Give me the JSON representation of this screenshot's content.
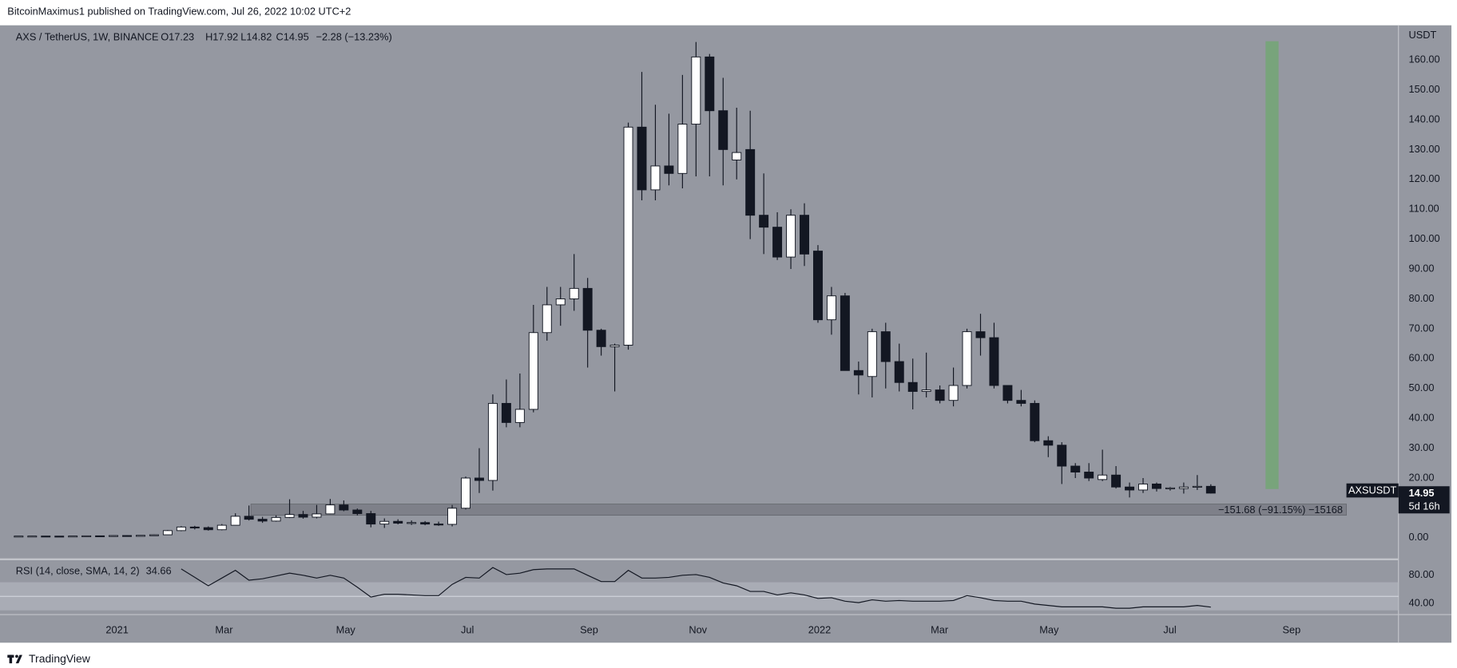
{
  "header": {
    "published": "BitcoinMaximus1 published on TradingView.com, Jul 26, 2022 10:02 UTC+2"
  },
  "footer": {
    "brand": "TradingView"
  },
  "chart_data": [
    {
      "type": "candlestick",
      "title": "AXS / TetherUS, 1W, BINANCE",
      "ohlc_legend": [
        "O17.23",
        "H17.92",
        "L14.82",
        "C14.95",
        "−2.28 (−13.23%)"
      ],
      "y_unit": "USDT",
      "up_color": "#ffffff",
      "down_color": "#131722",
      "x": [
        0,
        1,
        2,
        3,
        4,
        5,
        6,
        7,
        8,
        9,
        10,
        11,
        12,
        13,
        14,
        15,
        16,
        17,
        18,
        19,
        20,
        21,
        22,
        23,
        24,
        25,
        26,
        27,
        28,
        29,
        30,
        31,
        32,
        33,
        34,
        35,
        36,
        37,
        38,
        39,
        40,
        41,
        42,
        43,
        44,
        45,
        46,
        47,
        48,
        49,
        50,
        51,
        52,
        53,
        54,
        55,
        56,
        57,
        58,
        59,
        60,
        61,
        62,
        63,
        64,
        65,
        66,
        67,
        68,
        69,
        70,
        71,
        72,
        73,
        74,
        75,
        76,
        77,
        78,
        79,
        80,
        81,
        82,
        83,
        84,
        85,
        86,
        87,
        88
      ],
      "open": [
        0.55,
        0.57,
        0.58,
        0.56,
        0.54,
        0.59,
        0.65,
        0.62,
        0.75,
        0.65,
        0.82,
        1.0,
        2.4,
        3.6,
        3.4,
        2.7,
        4.2,
        7.2,
        6.2,
        5.6,
        6.8,
        7.8,
        6.9,
        8.0,
        11.0,
        9.3,
        8.1,
        4.6,
        5.5,
        4.9,
        5.1,
        4.6,
        4.5,
        9.9,
        20,
        19.2,
        45,
        38.6,
        43,
        68.7,
        78,
        80,
        83.5,
        69.5,
        64,
        64.5,
        137.5,
        116.5,
        124.5,
        122,
        138.5,
        161,
        143,
        126.5,
        130,
        108,
        104,
        94,
        108,
        96,
        73,
        81,
        56,
        54,
        69,
        59,
        52,
        49,
        49.5,
        46,
        51,
        69,
        67,
        51,
        46,
        45,
        32.5,
        31,
        24,
        22,
        19.5,
        21,
        17,
        16,
        18,
        16.5,
        16.5,
        17,
        17.23
      ],
      "high": [
        0.62,
        0.65,
        0.63,
        0.6,
        0.62,
        0.7,
        0.75,
        0.8,
        0.85,
        0.9,
        1.1,
        2.6,
        3.9,
        4.0,
        3.8,
        4.6,
        8.2,
        10.8,
        7.0,
        7.5,
        12.9,
        9.0,
        11.0,
        13.0,
        12.5,
        9.8,
        9.0,
        6.5,
        6.2,
        5.8,
        5.6,
        5.4,
        11.0,
        20.5,
        30,
        48,
        53,
        55,
        78,
        84,
        84,
        95,
        87,
        70,
        65,
        139,
        156,
        145,
        142,
        155,
        166,
        162,
        154,
        144,
        143,
        122,
        109,
        110,
        112,
        98,
        84,
        82,
        59,
        70,
        72,
        65,
        60,
        62,
        51,
        57,
        70,
        75,
        72,
        51,
        49.5,
        46,
        34,
        32,
        25,
        25,
        29.5,
        24,
        18.5,
        20,
        18.5,
        17,
        18.5,
        21,
        17.92
      ],
      "low": [
        0.5,
        0.52,
        0.53,
        0.5,
        0.5,
        0.55,
        0.58,
        0.6,
        0.6,
        0.62,
        0.75,
        0.95,
        2.2,
        2.8,
        2.4,
        2.5,
        4.1,
        5.8,
        5.0,
        5.4,
        6.6,
        6.4,
        6.5,
        7.9,
        8.9,
        7.5,
        3.5,
        3.3,
        4.5,
        4.3,
        4.2,
        4.0,
        3.8,
        9.5,
        15,
        15.8,
        37,
        37,
        42,
        66,
        71,
        76,
        57,
        61,
        49,
        63,
        113,
        113,
        118,
        117,
        121,
        121,
        118,
        120,
        100,
        95,
        93,
        90,
        91,
        72,
        68,
        56,
        48,
        47,
        50,
        49,
        43,
        47,
        45,
        44,
        50,
        61,
        50,
        45,
        44,
        32,
        27,
        18,
        20,
        19,
        19,
        16.5,
        13.5,
        15,
        15.5,
        15.8,
        14.8,
        16,
        14.82
      ],
      "close": [
        0.57,
        0.58,
        0.56,
        0.54,
        0.59,
        0.65,
        0.62,
        0.75,
        0.65,
        0.82,
        1.0,
        2.4,
        3.6,
        3.4,
        2.7,
        4.2,
        7.2,
        6.2,
        5.6,
        6.8,
        7.8,
        6.9,
        8.0,
        11.0,
        9.3,
        8.1,
        4.6,
        5.5,
        4.9,
        5.1,
        4.6,
        4.5,
        9.9,
        20,
        19.2,
        45,
        38.6,
        43,
        68.7,
        78,
        80,
        83.5,
        69.5,
        64,
        64.5,
        137.5,
        116.5,
        124.5,
        122,
        138.5,
        161,
        143,
        130,
        129,
        108,
        104,
        94,
        108,
        95,
        73,
        81,
        56,
        54.5,
        69,
        59,
        52,
        49,
        49.5,
        46,
        51,
        69,
        67,
        51,
        46,
        45,
        32.5,
        31,
        24,
        22,
        20,
        21,
        17,
        16,
        18,
        16.5,
        16.7,
        17,
        17.23,
        14.95
      ],
      "xlim": [
        -0.69,
        101.85
      ],
      "xticks": [
        {
          "value": 7.27,
          "label": "2021"
        },
        {
          "value": 15.16,
          "label": "Mar"
        },
        {
          "value": 24.14,
          "label": "May"
        },
        {
          "value": 33.13,
          "label": "Jul"
        },
        {
          "value": 42.11,
          "label": "Sep"
        },
        {
          "value": 50.14,
          "label": "Nov"
        },
        {
          "value": 59.12,
          "label": "2022"
        },
        {
          "value": 67.97,
          "label": "Mar"
        },
        {
          "value": 76.06,
          "label": "May"
        },
        {
          "value": 84.98,
          "label": "Jul"
        },
        {
          "value": 93.96,
          "label": "Sep"
        }
      ],
      "ylim": [
        -6.9,
        171.6
      ],
      "yticks": [
        {
          "value": 0,
          "label": "0.00"
        },
        {
          "value": 20,
          "label": "20.00"
        },
        {
          "value": 30,
          "label": "30.00"
        },
        {
          "value": 40,
          "label": "40.00"
        },
        {
          "value": 50,
          "label": "50.00"
        },
        {
          "value": 60,
          "label": "60.00"
        },
        {
          "value": 70,
          "label": "70.00"
        },
        {
          "value": 80,
          "label": "80.00"
        },
        {
          "value": 90,
          "label": "90.00"
        },
        {
          "value": 100,
          "label": "100.00"
        },
        {
          "value": 110,
          "label": "110.00"
        },
        {
          "value": 120,
          "label": "120.00"
        },
        {
          "value": 130,
          "label": "130.00"
        },
        {
          "value": 140,
          "label": "140.00"
        },
        {
          "value": 150,
          "label": "150.00"
        },
        {
          "value": 160,
          "label": "160.00"
        }
      ],
      "grid": false,
      "last_price": {
        "symbol": "AXSUSDT",
        "price": "14.95",
        "countdown": "5d 16h"
      },
      "measure_label": "−151.68 (−91.15%) −15168"
    },
    {
      "type": "line",
      "title": "RSI (14, close, SMA, 14, 2)",
      "value_label": "34.66",
      "color": "#131722",
      "values": [
        null,
        null,
        null,
        null,
        null,
        null,
        null,
        null,
        null,
        null,
        null,
        null,
        89,
        77,
        65,
        76,
        87,
        73,
        75,
        79,
        83,
        80,
        76,
        80,
        76,
        63,
        49,
        53,
        53,
        52,
        51,
        51,
        67,
        77,
        76,
        91,
        81,
        83,
        88,
        89,
        89,
        89,
        80,
        71,
        71,
        87,
        76,
        76,
        77,
        80,
        81,
        77,
        69,
        65,
        57,
        57,
        52,
        55,
        52,
        47,
        48,
        43,
        41,
        45,
        43,
        44,
        43,
        43,
        43,
        44,
        51,
        48,
        44,
        43,
        43,
        39,
        37,
        35,
        35,
        35,
        35,
        33,
        33,
        35,
        35,
        35,
        35,
        37,
        34.66
      ],
      "ylim": [
        25.3,
        102.7
      ],
      "yticks": [
        {
          "value": 40,
          "label": "40.00"
        },
        {
          "value": 80,
          "label": "80.00"
        }
      ],
      "band": [
        30,
        70
      ]
    }
  ]
}
